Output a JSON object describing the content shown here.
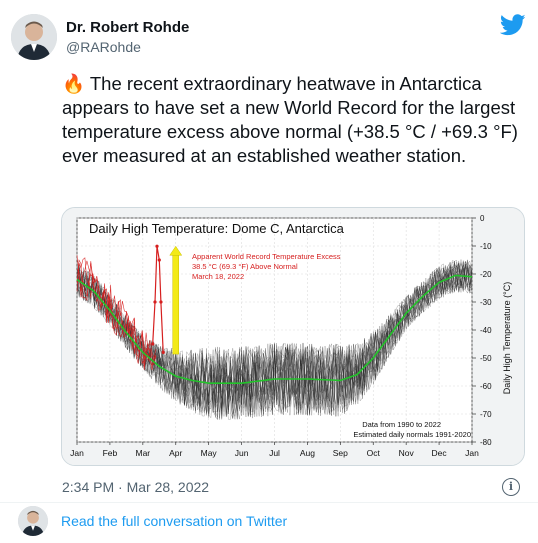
{
  "author": {
    "name": "Dr. Robert Rohde",
    "handle": "@RARohde",
    "avatar_icon": "person-avatar"
  },
  "platform_icon": "twitter-bird-icon",
  "tweet": {
    "emoji": "🔥",
    "text": "The recent extraordinary heatwave in Antarctica appears to have set a new World Record for the largest temperature excess above normal (+38.5 °C / +69.3 °F) ever measured at an established weather station."
  },
  "timestamp": "2:34 PM · Mar 28, 2022",
  "info_icon": "info-icon",
  "read_more": "Read the full conversation on Twitter",
  "colors": {
    "accent": "#1d9bf0",
    "normal_line": "#22c32a",
    "record": "#d61f1f",
    "arrow": "#f3ea18"
  },
  "chart_data": {
    "type": "line",
    "title": "Daily High Temperature: Dome C, Antarctica",
    "ylabel": "Daily High Temperature (°C)",
    "ylim": [
      -80,
      0
    ],
    "yticks": [
      0,
      -10,
      -20,
      -30,
      -40,
      -50,
      -60,
      -70,
      -80
    ],
    "x_ticks": [
      "Jan",
      "Feb",
      "Mar",
      "Apr",
      "May",
      "Jun",
      "Jul",
      "Aug",
      "Sep",
      "Oct",
      "Nov",
      "Dec",
      "Jan"
    ],
    "annotation": {
      "lines": [
        "Apparent World Record Temperature Excess",
        "38.5 °C (69.3 °F) Above Normal",
        "March 18, 2022"
      ],
      "record_value": -10.1,
      "normal_value": -48.6
    },
    "notes": [
      "Data from 1990 to 2022",
      "Estimated daily normals 1991-2020"
    ],
    "normals": {
      "x_month": [
        0,
        0.5,
        1,
        1.5,
        2,
        2.5,
        3,
        3.5,
        4,
        5,
        6,
        7,
        8,
        8.5,
        9,
        9.5,
        10,
        10.5,
        11,
        11.5,
        12
      ],
      "values": [
        -22,
        -26,
        -33,
        -41,
        -48,
        -53,
        -56.5,
        -58,
        -59,
        -59,
        -57.5,
        -57.5,
        -58,
        -56,
        -50,
        -42,
        -34,
        -28,
        -23,
        -20.5,
        -21
      ]
    },
    "record_2022": {
      "x_month": [
        2.3,
        2.37,
        2.43,
        2.5,
        2.55,
        2.62
      ],
      "values": [
        -45,
        -30,
        -10.1,
        -15,
        -30,
        -48
      ]
    }
  }
}
